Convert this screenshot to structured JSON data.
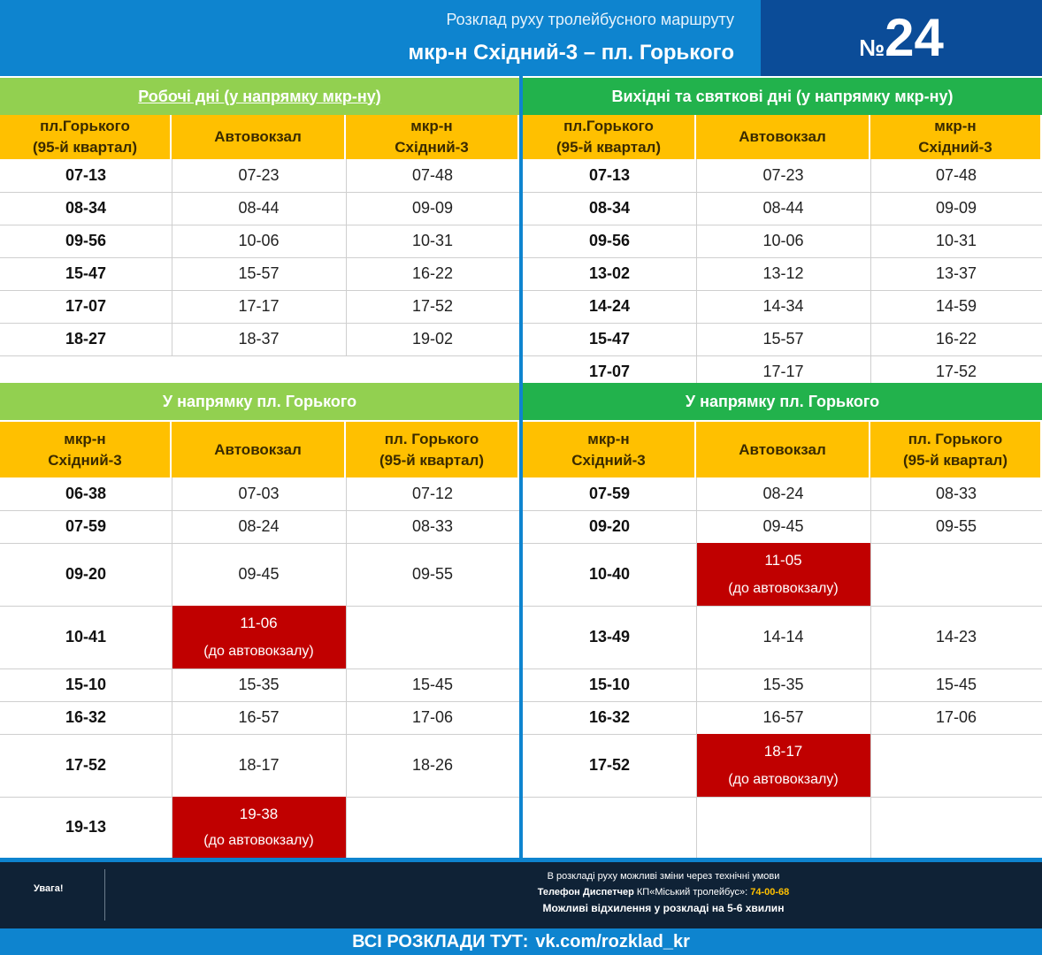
{
  "header": {
    "subtitle": "Розклад руху тролейбусного маршруту",
    "route": "мкр-н Східний-3 –  пл. Горького",
    "route_no_prefix": "№",
    "route_no": "24"
  },
  "colors": {
    "header_blue": "#0e84cf",
    "dark_blue": "#0b4c98",
    "light_green": "#92d050",
    "green": "#22b24c",
    "yellow": "#ffc000",
    "red": "#c00000"
  },
  "weekday_to": {
    "title": "Робочі дні (у напрямку мкр-ну)",
    "cols": [
      "пл.Горького\n(95-й квартал)",
      "Автовокзал",
      "мкр-н\nСхідний-3"
    ],
    "rows": [
      [
        "07-13",
        "07-23",
        "07-48"
      ],
      [
        "08-34",
        "08-44",
        "09-09"
      ],
      [
        "09-56",
        "10-06",
        "10-31"
      ],
      [
        "15-47",
        "15-57",
        "16-22"
      ],
      [
        "17-07",
        "17-17",
        "17-52"
      ],
      [
        "18-27",
        "18-37",
        "19-02"
      ]
    ]
  },
  "weekend_to": {
    "title": "Вихідні та святкові дні (у напрямку мкр-ну)",
    "cols": [
      "пл.Горького\n(95-й квартал)",
      "Автовокзал",
      "мкр-н\nСхідний-3"
    ],
    "rows": [
      [
        "07-13",
        "07-23",
        "07-48"
      ],
      [
        "08-34",
        "08-44",
        "09-09"
      ],
      [
        "09-56",
        "10-06",
        "10-31"
      ],
      [
        "13-02",
        "13-12",
        "13-37"
      ],
      [
        "14-24",
        "14-34",
        "14-59"
      ],
      [
        "15-47",
        "15-57",
        "16-22"
      ],
      [
        "17-07",
        "17-17",
        "17-52"
      ]
    ]
  },
  "weekday_from": {
    "title": "У напрямку пл. Горького",
    "cols": [
      "мкр-н\nСхідний-3",
      "Автовокзал",
      "пл. Горького\n(95-й квартал)"
    ],
    "rows": [
      [
        "06-38",
        "07-03",
        "07-12"
      ],
      [
        "07-59",
        "08-24",
        "08-33"
      ],
      [
        "09-20",
        "09-45",
        "09-55"
      ],
      [
        "10-41",
        "11-06",
        ""
      ],
      [
        "15-10",
        "15-35",
        "15-45"
      ],
      [
        "16-32",
        "16-57",
        "17-06"
      ],
      [
        "17-52",
        "18-17",
        "18-26"
      ],
      [
        "19-13",
        "19-38",
        ""
      ]
    ]
  },
  "weekend_from": {
    "title": "У напрямку пл. Горького",
    "cols": [
      "мкр-н\nСхідний-3",
      "Автовокзал",
      "пл. Горького\n(95-й квартал)"
    ],
    "rows": [
      [
        "07-59",
        "08-24",
        "08-33"
      ],
      [
        "09-20",
        "09-45",
        "09-55"
      ],
      [
        "10-40",
        "11-05",
        ""
      ],
      [
        "13-49",
        "14-14",
        "14-23"
      ],
      [
        "15-10",
        "15-35",
        "15-45"
      ],
      [
        "16-32",
        "16-57",
        "17-06"
      ],
      [
        "17-52",
        "18-17",
        ""
      ],
      [
        "",
        "",
        ""
      ]
    ]
  },
  "to_station_note": "(до автовокзалу)",
  "footer": {
    "warning": "Увага!",
    "line1": "В розкладі руху можливі зміни через технічні умови",
    "line2_prefix": "Телефон Диспетчер",
    "line2_org": "КП«Міський тролейбус»:",
    "line2_phone": "74-00-68",
    "line3": "Можливі відхилення у розкладі на 5-6 хвилин",
    "all_label": "ВСІ РОЗКЛАДИ ТУТ:",
    "all_link": "vk.com/rozklad_kr"
  }
}
